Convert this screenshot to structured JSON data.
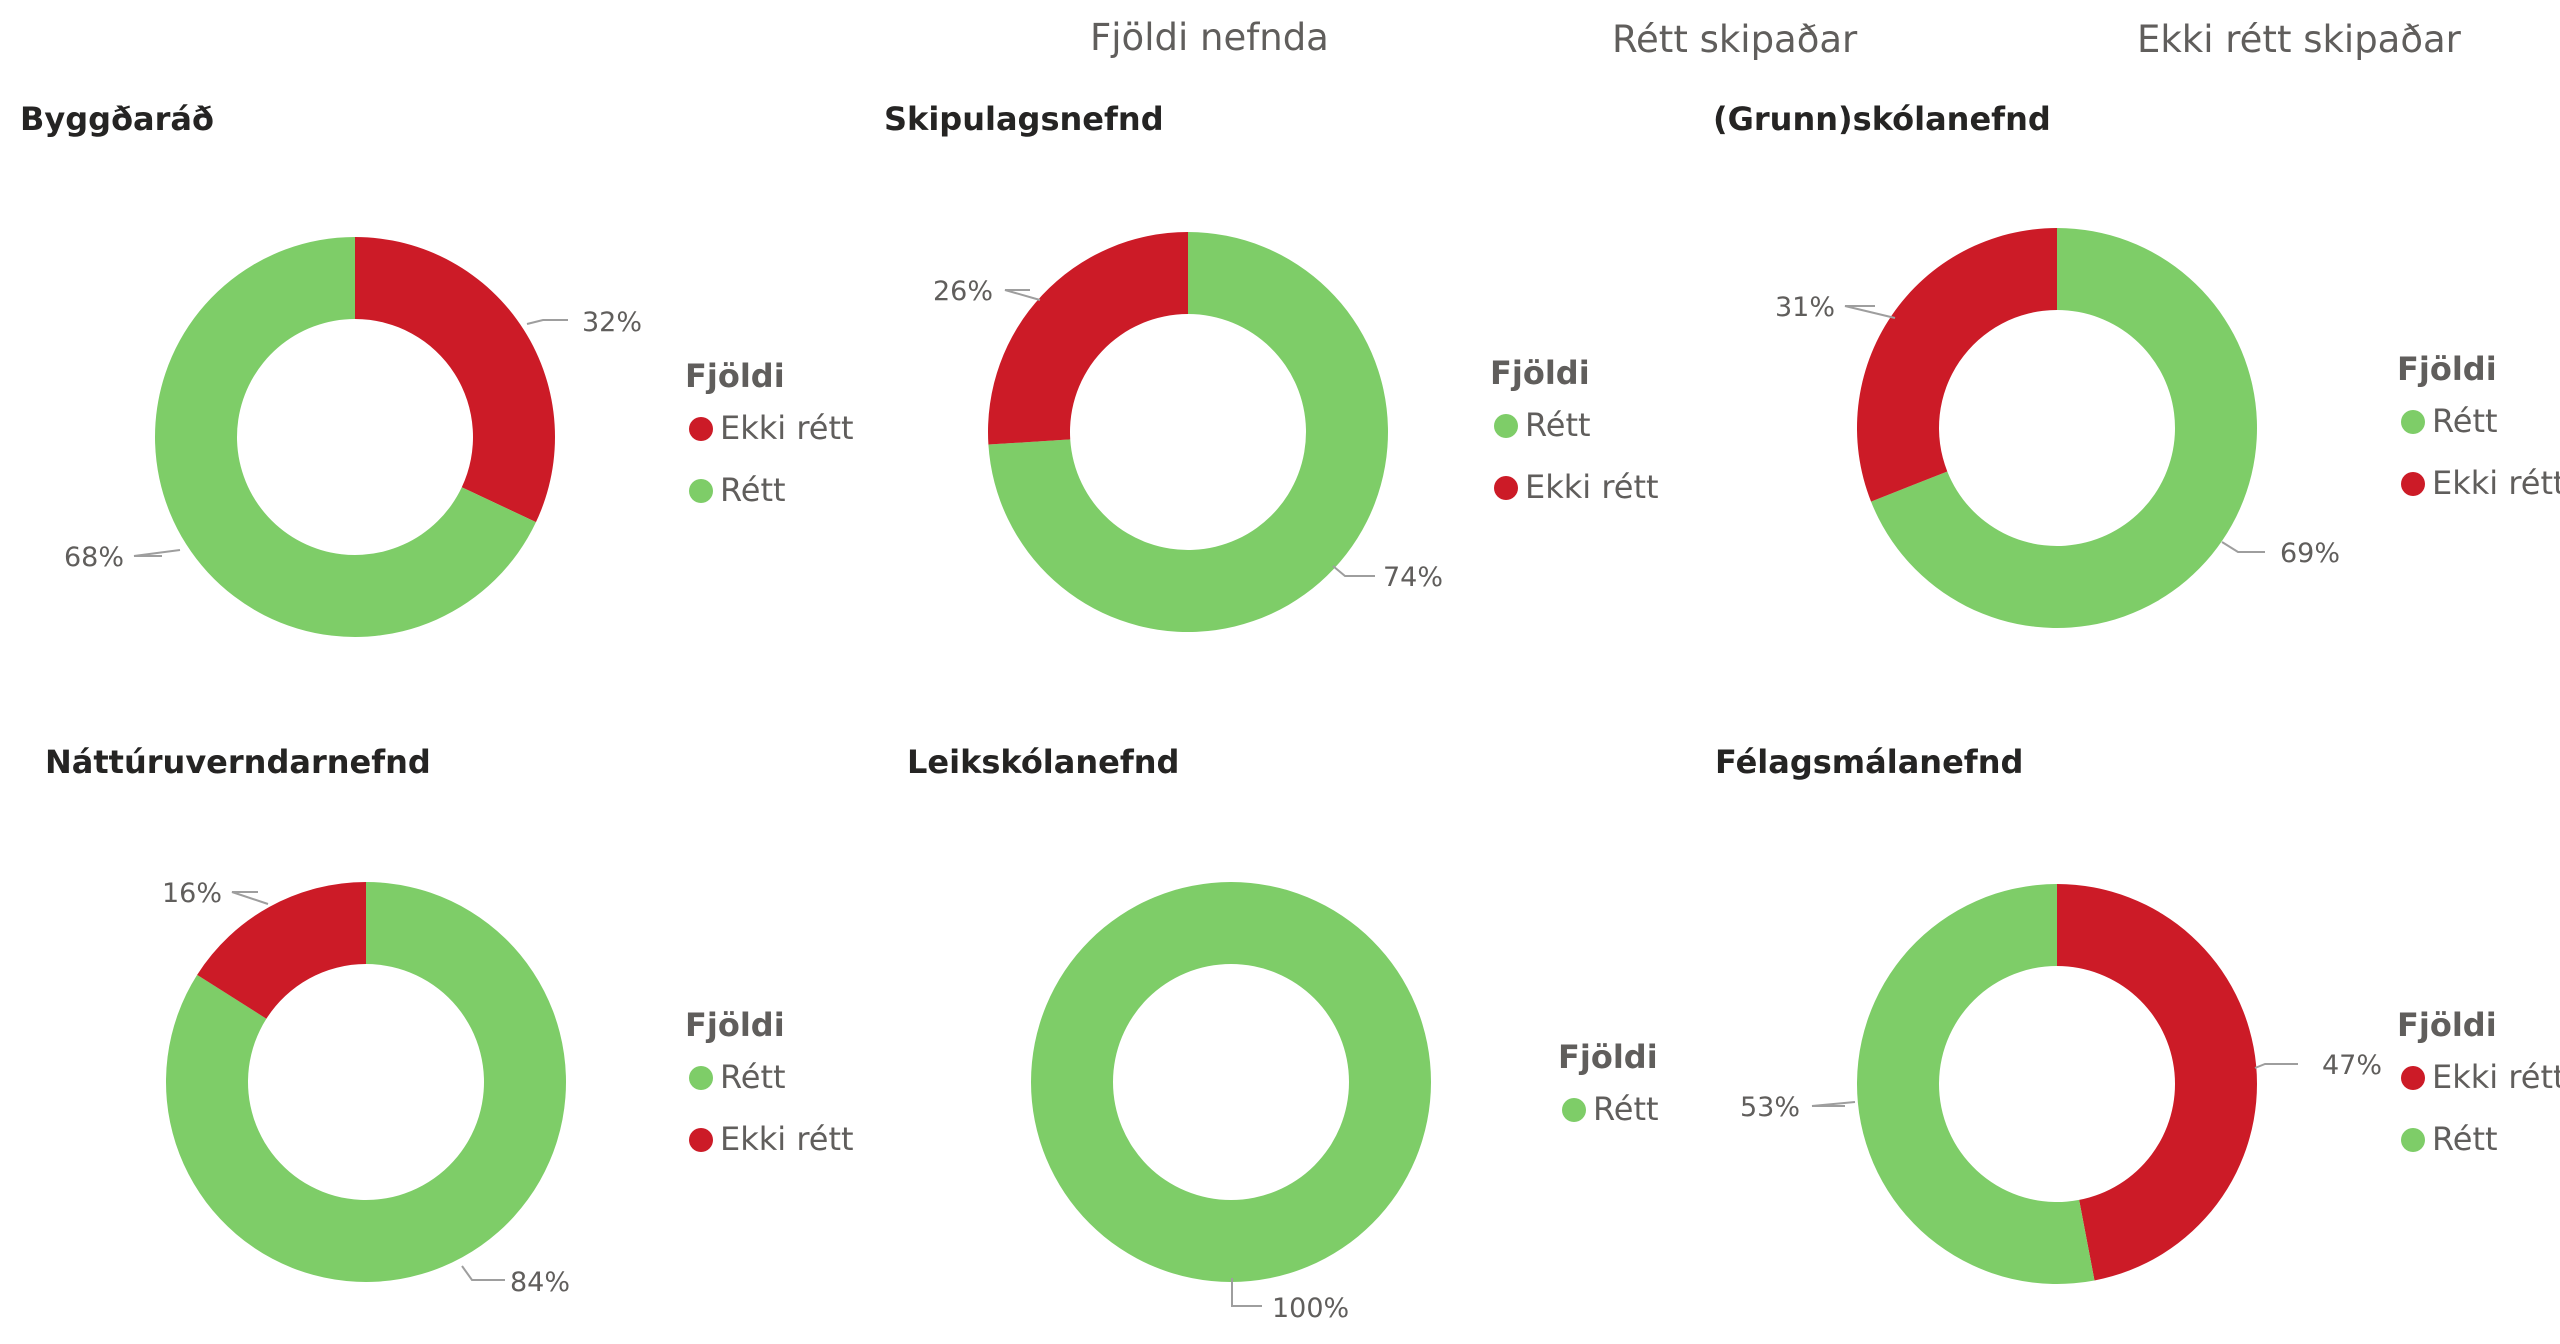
{
  "header": {
    "tabs": [
      {
        "label": "Fjöldi nefnda"
      },
      {
        "label": "Rétt skipaðar"
      },
      {
        "label": "Ekki rétt skipaðar"
      }
    ]
  },
  "colors": {
    "Rétt": "#7ecd68",
    "Ekki rétt": "#cc1b27"
  },
  "chart_data": [
    {
      "type": "pie",
      "title": "Byggðaráð",
      "legend_title": "Fjöldi",
      "legend_placement": "right",
      "slices": [
        {
          "label": "Ekki rétt",
          "value": 32,
          "display": "32%"
        },
        {
          "label": "Rétt",
          "value": 68,
          "display": "68%"
        }
      ]
    },
    {
      "type": "pie",
      "title": "Skipulagsnefnd",
      "legend_title": "Fjöldi",
      "legend_placement": "right",
      "slices": [
        {
          "label": "Rétt",
          "value": 74,
          "display": "74%"
        },
        {
          "label": "Ekki rétt",
          "value": 26,
          "display": "26%"
        }
      ]
    },
    {
      "type": "pie",
      "title": "(Grunn)skólanefnd",
      "legend_title": "Fjöldi",
      "legend_placement": "right",
      "slices": [
        {
          "label": "Rétt",
          "value": 69,
          "display": "69%"
        },
        {
          "label": "Ekki rétt",
          "value": 31,
          "display": "31%"
        }
      ]
    },
    {
      "type": "pie",
      "title": "Náttúruverndarnefnd",
      "legend_title": "Fjöldi",
      "legend_placement": "right",
      "slices": [
        {
          "label": "Rétt",
          "value": 84,
          "display": "84%"
        },
        {
          "label": "Ekki rétt",
          "value": 16,
          "display": "16%"
        }
      ]
    },
    {
      "type": "pie",
      "title": "Leikskólanefnd",
      "legend_title": "Fjöldi",
      "legend_placement": "right",
      "slices": [
        {
          "label": "Rétt",
          "value": 100,
          "display": "100%"
        }
      ]
    },
    {
      "type": "pie",
      "title": "Félagsmálanefnd",
      "legend_title": "Fjöldi",
      "legend_placement": "right",
      "slices": [
        {
          "label": "Ekki rétt",
          "value": 47,
          "display": "47%"
        },
        {
          "label": "Rétt",
          "value": 53,
          "display": "53%"
        }
      ]
    }
  ]
}
